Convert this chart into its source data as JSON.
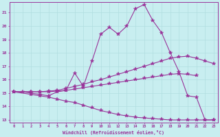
{
  "background_color": "#c8eef0",
  "grid_color": "#b0dde0",
  "line_color": "#993399",
  "marker": "*",
  "xlabel": "Windchill (Refroidissement éolien,°C)",
  "xlim": [
    -0.5,
    23.5
  ],
  "ylim": [
    12.8,
    21.8
  ],
  "yticks": [
    13,
    14,
    15,
    16,
    17,
    18,
    19,
    20,
    21
  ],
  "xticks": [
    0,
    1,
    2,
    3,
    4,
    5,
    6,
    7,
    8,
    9,
    10,
    11,
    12,
    13,
    14,
    15,
    16,
    17,
    18,
    19,
    20,
    21,
    22,
    23
  ],
  "line1_x": [
    0,
    1,
    2,
    3,
    4,
    5,
    6,
    7,
    8,
    9,
    10,
    11,
    12,
    13,
    14,
    15,
    16,
    17,
    18,
    19,
    20,
    21,
    22,
    23
  ],
  "line1_y": [
    15.1,
    15.1,
    15.0,
    14.9,
    14.8,
    15.1,
    15.2,
    16.5,
    15.5,
    17.4,
    19.4,
    19.9,
    19.4,
    20.0,
    21.3,
    21.6,
    20.4,
    19.5,
    18.0,
    16.6,
    14.8,
    14.7,
    13.0,
    13.0
  ],
  "line2_x": [
    0,
    2,
    3,
    4,
    5,
    6,
    7,
    8,
    9,
    10,
    11,
    12,
    13,
    14,
    15,
    16,
    17,
    18,
    19,
    20,
    21,
    22,
    23
  ],
  "line2_y": [
    15.1,
    15.1,
    15.1,
    15.15,
    15.2,
    15.35,
    15.5,
    15.65,
    15.85,
    16.0,
    16.2,
    16.4,
    16.6,
    16.8,
    17.0,
    17.2,
    17.4,
    17.6,
    17.7,
    17.75,
    17.6,
    17.4,
    17.2
  ],
  "line3_x": [
    0,
    2,
    3,
    4,
    5,
    6,
    7,
    8,
    9,
    10,
    11,
    12,
    13,
    14,
    15,
    16,
    17,
    18,
    19,
    20,
    21
  ],
  "line3_y": [
    15.1,
    15.1,
    15.1,
    15.1,
    15.15,
    15.2,
    15.3,
    15.4,
    15.5,
    15.6,
    15.7,
    15.8,
    15.9,
    16.0,
    16.1,
    16.2,
    16.3,
    16.4,
    16.45,
    16.4,
    16.3
  ],
  "line4_x": [
    0,
    2,
    3,
    4,
    5,
    6,
    7,
    8,
    9,
    10,
    11,
    12,
    13,
    14,
    15,
    16,
    17,
    18,
    19,
    20,
    21,
    22,
    23
  ],
  "line4_y": [
    15.1,
    14.9,
    14.8,
    14.7,
    14.55,
    14.4,
    14.3,
    14.1,
    13.9,
    13.7,
    13.55,
    13.4,
    13.3,
    13.2,
    13.15,
    13.1,
    13.05,
    13.0,
    13.0,
    13.0,
    13.0,
    13.0,
    13.0
  ]
}
